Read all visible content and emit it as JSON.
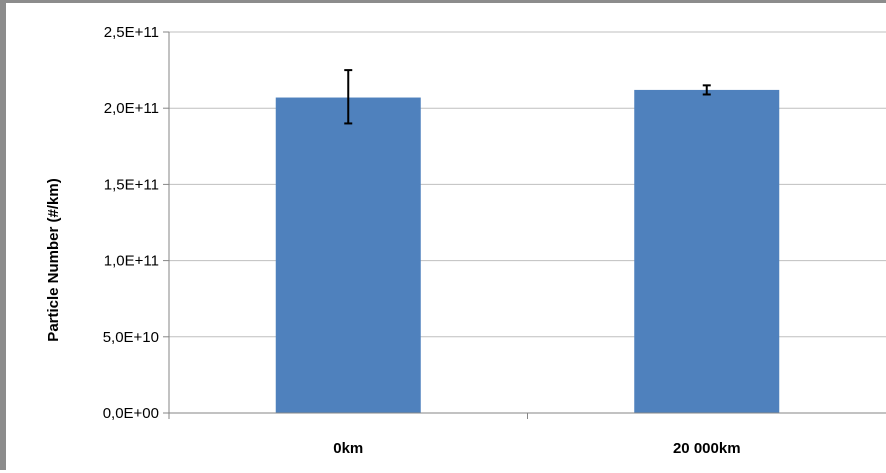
{
  "chart_data": {
    "type": "bar",
    "title": "",
    "xlabel": "",
    "ylabel": "Particle Number (#/km)",
    "categories": [
      "0km",
      "20 000km"
    ],
    "series": [
      {
        "values": [
          207000000000.0,
          212000000000.0
        ],
        "error_low": [
          190000000000.0,
          209000000000.0
        ],
        "error_high": [
          225000000000.0,
          215000000000.0
        ]
      }
    ],
    "ylim": [
      0,
      250000000000.0
    ],
    "yticks": [
      0,
      50000000000.0,
      100000000000.0,
      150000000000.0,
      200000000000.0,
      250000000000.0
    ],
    "ytick_labels": [
      "0,0E+00",
      "5,0E+10",
      "1,0E+11",
      "1,5E+11",
      "2,0E+11",
      "2,5E+11"
    ],
    "grid": true,
    "legend": "none",
    "colors": {
      "bar": "#4f81bd",
      "grid": "#bfbfbf",
      "axis": "#868686",
      "frame": "#8c8c8c"
    }
  }
}
